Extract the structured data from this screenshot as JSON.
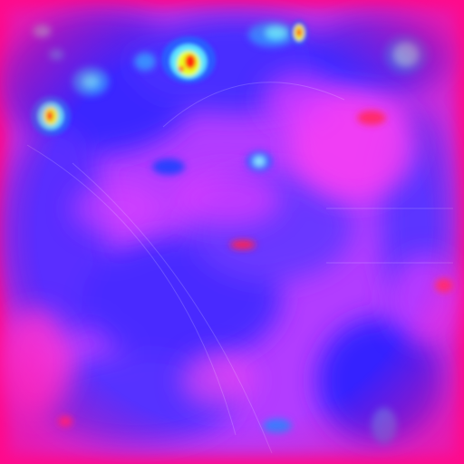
{
  "image": {
    "kind": "false-color heatmap",
    "colormap": [
      "#ff1e8c",
      "#ff3cff",
      "#b040ff",
      "#4a3cff",
      "#1f1cff",
      "#1e5cff",
      "#4aa8ff",
      "#3cf0e0",
      "#e8ff1e",
      "#ff6b0a",
      "#ff1a1a"
    ],
    "colors": {
      "border": "#ff0a8a",
      "base": "#c238ff",
      "low": "#2a1cff",
      "mid": "#3e8aff",
      "cyan": "#5ee6ff",
      "hot_yellow": "#e8ff22",
      "hot_red": "#ff2b10",
      "magenta": "#ff40f2"
    }
  }
}
